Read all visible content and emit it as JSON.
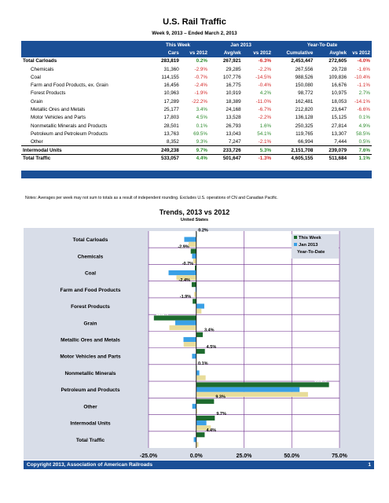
{
  "header": {
    "title": "U.S. Rail Traffic",
    "subtitle": "Week 9, 2013 – Ended March 2, 2013"
  },
  "table": {
    "group_headers": [
      "This Week",
      "Jan 2013",
      "Year-To-Date"
    ],
    "column_headers": [
      "Cars",
      "vs 2012",
      "Avg/wk",
      "vs 2012",
      "Cumulative",
      "Avg/wk",
      "vs 2012"
    ],
    "rows": [
      {
        "label": "Total Carloads",
        "bold": true,
        "sub": false,
        "values": [
          "283,819",
          "0.2%",
          "267,921",
          "-6.3%",
          "2,453,447",
          "272,605",
          "-4.0%"
        ]
      },
      {
        "label": "Chemicals",
        "bold": false,
        "sub": true,
        "values": [
          "31,360",
          "-2.9%",
          "29,285",
          "-2.2%",
          "267,556",
          "29,728",
          "-1.6%"
        ]
      },
      {
        "label": "Coal",
        "bold": false,
        "sub": true,
        "values": [
          "114,155",
          "-0.7%",
          "107,776",
          "-14.5%",
          "988,526",
          "109,836",
          "-10.4%"
        ]
      },
      {
        "label": "Farm and Food Products, ex. Grain",
        "bold": false,
        "sub": true,
        "values": [
          "16,456",
          "-2.4%",
          "16,775",
          "-0.4%",
          "150,080",
          "16,676",
          "-1.1%"
        ]
      },
      {
        "label": "Forest Products",
        "bold": false,
        "sub": true,
        "values": [
          "10,963",
          "-1.9%",
          "10,919",
          "4.2%",
          "98,772",
          "10,975",
          "2.7%"
        ]
      },
      {
        "label": "Grain",
        "bold": false,
        "sub": true,
        "values": [
          "17,289",
          "-22.2%",
          "18,389",
          "-11.0%",
          "162,481",
          "18,053",
          "-14.1%"
        ]
      },
      {
        "label": "Metallic Ores and Metals",
        "bold": false,
        "sub": true,
        "values": [
          "25,177",
          "3.4%",
          "24,168",
          "-6.7%",
          "212,820",
          "23,647",
          "-6.6%"
        ]
      },
      {
        "label": "Motor Vehicles and Parts",
        "bold": false,
        "sub": true,
        "values": [
          "17,803",
          "4.5%",
          "13,528",
          "-2.2%",
          "136,128",
          "15,125",
          "0.1%"
        ]
      },
      {
        "label": "Nonmetallic Minerals and Products",
        "bold": false,
        "sub": true,
        "values": [
          "28,501",
          "0.1%",
          "26,793",
          "1.6%",
          "250,325",
          "27,814",
          "4.9%"
        ]
      },
      {
        "label": "Petroleum and Petroleum Products",
        "bold": false,
        "sub": true,
        "values": [
          "13,763",
          "69.5%",
          "13,043",
          "54.1%",
          "119,765",
          "13,307",
          "58.5%"
        ]
      },
      {
        "label": "Other",
        "bold": false,
        "sub": true,
        "values": [
          "8,352",
          "9.3%",
          "7,247",
          "-2.1%",
          "66,994",
          "7,444",
          "0.5%"
        ]
      },
      {
        "label": "Intermodal Units",
        "bold": true,
        "sub": false,
        "sep": true,
        "values": [
          "249,238",
          "9.7%",
          "233,726",
          "5.3%",
          "2,151,708",
          "239,079",
          "7.6%"
        ]
      },
      {
        "label": "Total Traffic",
        "bold": true,
        "sub": false,
        "sep": true,
        "values": [
          "533,057",
          "4.4%",
          "501,647",
          "-1.3%",
          "4,605,155",
          "511,684",
          "1.1%"
        ]
      }
    ]
  },
  "notes": "Notes: Averages per week may not sum to totals as a result of independent rounding. Excludes U.S. operations of CN and Canadian Pacific.",
  "chart_data": {
    "type": "bar",
    "title": "Trends, 2013 vs 2012",
    "subtitle": "United States",
    "categories": [
      "Total Carloads",
      "Chemicals",
      "Coal",
      "Farm and Food Products",
      "Forest Products",
      "Grain",
      "Metallic Ores and Metals",
      "Motor Vehicles and Parts",
      "Nonmetallic Minerals",
      "Petroleum and Products",
      "Other",
      "Intermodal Units",
      "Total Traffic"
    ],
    "series": [
      {
        "name": "This Week",
        "color": "#1e6b2e",
        "values": [
          0.2,
          -2.9,
          -0.7,
          -2.4,
          -1.9,
          -22.2,
          3.4,
          4.5,
          0.1,
          69.5,
          9.3,
          9.7,
          4.4
        ]
      },
      {
        "name": "Jan 2013",
        "color": "#3aa0e6",
        "values": [
          -6.3,
          -2.2,
          -14.5,
          -0.4,
          4.2,
          -11.0,
          -6.7,
          -2.2,
          1.6,
          54.1,
          -2.1,
          5.3,
          -1.3
        ]
      },
      {
        "name": "Year-To-Date",
        "color": "#e8dc9a",
        "values": [
          -4.0,
          -1.6,
          -10.4,
          -1.1,
          2.7,
          -14.1,
          -6.6,
          0.1,
          4.9,
          58.5,
          0.5,
          7.6,
          1.1
        ]
      }
    ],
    "data_labels": [
      "0.2%",
      "-2.9%",
      "-0.7%",
      "-2.4%",
      "-1.9%",
      "-22.2%",
      "3.4%",
      "4.5%",
      "0.1%",
      "69.5%",
      "9.3%",
      "9.7%",
      "4.4%"
    ],
    "xlim": [
      -25,
      75
    ],
    "xticks": [
      "-25.0%",
      "0.0%",
      "25.0%",
      "50.0%",
      "75.0%"
    ],
    "legend_position": "top-right",
    "grid": true
  },
  "footer": {
    "copyright": "Copyright 2013, Association of American Railroads",
    "page": "1"
  }
}
